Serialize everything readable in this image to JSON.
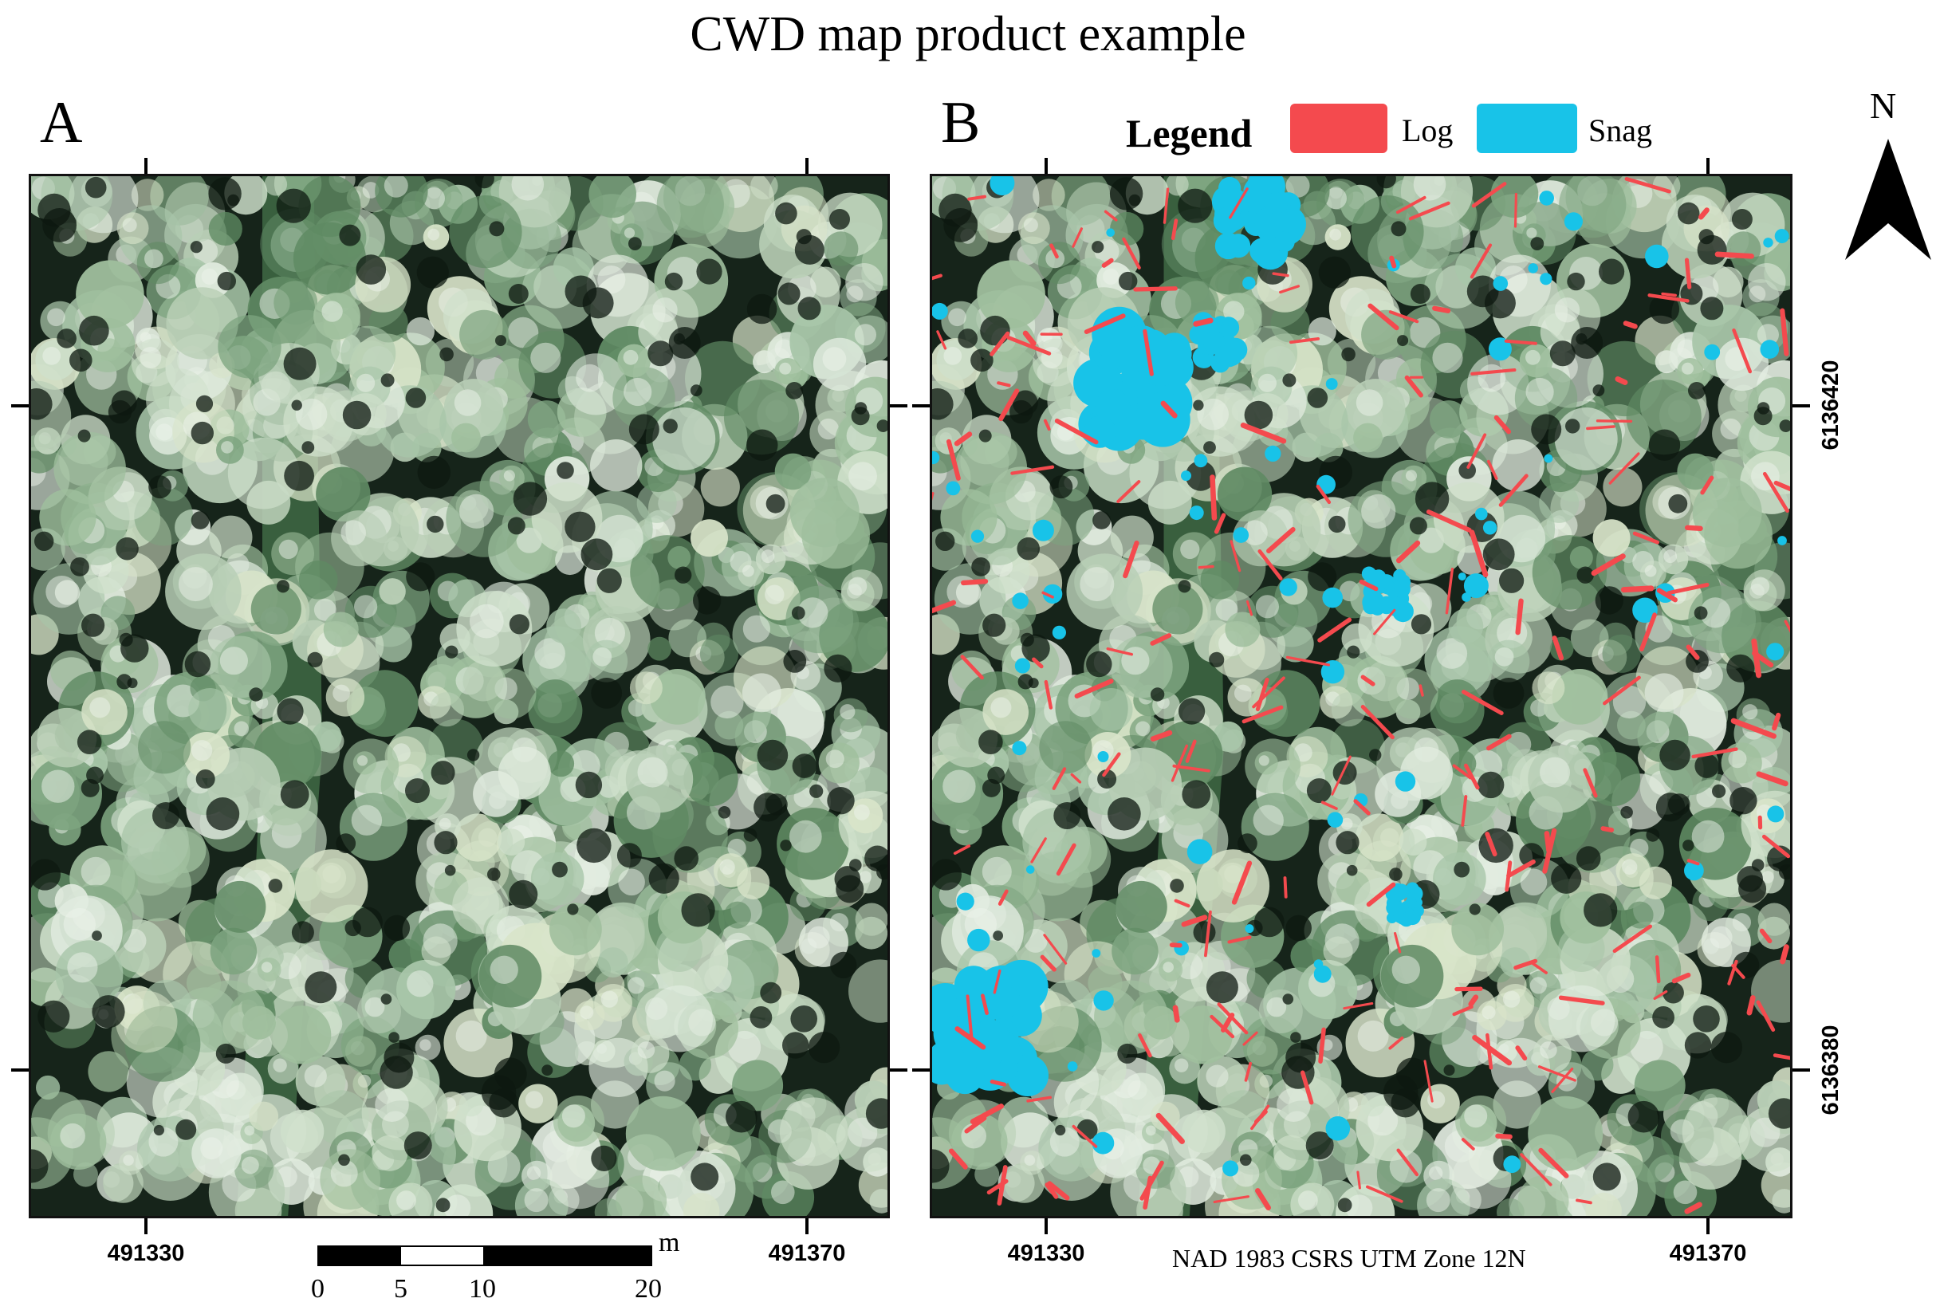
{
  "title": "CWD map product example",
  "panels": {
    "a": {
      "label": "A"
    },
    "b": {
      "label": "B"
    }
  },
  "legend": {
    "title": "Legend",
    "items": [
      {
        "label": "Log",
        "color": "#f44a4e"
      },
      {
        "label": "Snag",
        "color": "#18c3e8"
      }
    ]
  },
  "north_arrow": {
    "label": "N",
    "icon": "north-arrow-icon"
  },
  "axes": {
    "easting": [
      "491330",
      "491370"
    ],
    "northing": [
      "6136420",
      "6136380"
    ]
  },
  "scale_bar": {
    "unit": "m",
    "labels": [
      "0",
      "5",
      "10",
      "20"
    ]
  },
  "crs": "NAD 1983 CSRS UTM Zone 12N",
  "colors": {
    "canopy_dark": "#1a2a1c",
    "canopy_light": "#c9dcc4",
    "log": "#f44a4e",
    "snag": "#18c3e8"
  }
}
